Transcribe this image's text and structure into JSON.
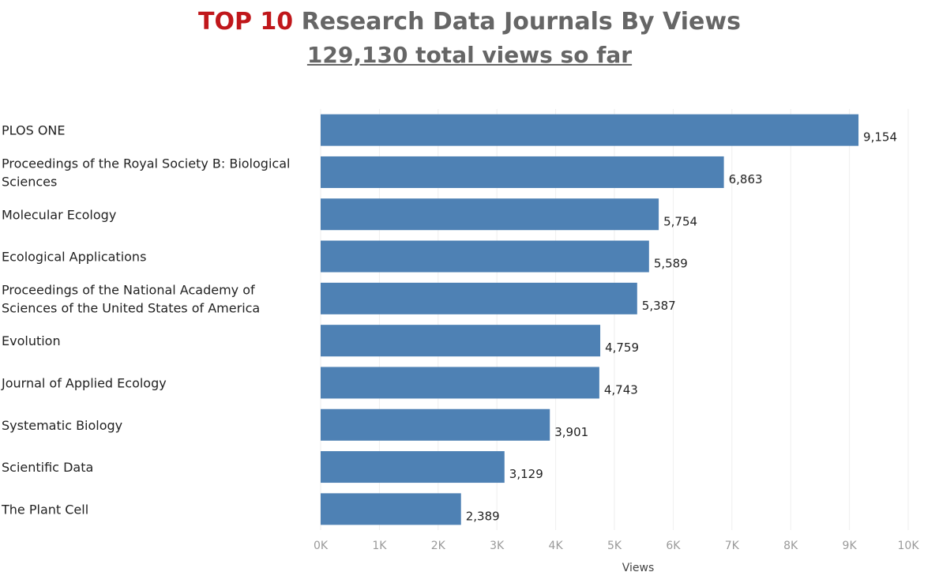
{
  "header": {
    "title_accent": "TOP 10",
    "title_rest": " Research Data Journals By Views",
    "subtitle": "129,130 total views so far"
  },
  "chart_data": {
    "type": "bar",
    "orientation": "horizontal",
    "title": "TOP 10 Research Data Journals By Views",
    "subtitle": "129,130 total views so far",
    "categories": [
      [
        "PLOS ONE"
      ],
      [
        "Proceedings of the Royal Society B: Biological",
        "Sciences"
      ],
      [
        "Molecular Ecology"
      ],
      [
        "Ecological Applications"
      ],
      [
        "Proceedings of the National Academy of",
        "Sciences of the United States of America"
      ],
      [
        "Evolution"
      ],
      [
        "Journal of Applied Ecology"
      ],
      [
        "Systematic Biology"
      ],
      [
        "Scientific Data"
      ],
      [
        "The Plant Cell"
      ]
    ],
    "values": [
      9154,
      6863,
      5754,
      5589,
      5387,
      4759,
      4743,
      3901,
      3129,
      2389
    ],
    "value_labels": [
      "9,154",
      "6,863",
      "5,754",
      "5,589",
      "5,387",
      "4,759",
      "4,743",
      "3,901",
      "3,129",
      "2,389"
    ],
    "xlabel": "Views",
    "ylabel": "",
    "xlim": [
      0,
      10000
    ],
    "xticks": [
      0,
      1000,
      2000,
      3000,
      4000,
      5000,
      6000,
      7000,
      8000,
      9000,
      10000
    ],
    "xtick_labels": [
      "0K",
      "1K",
      "2K",
      "3K",
      "4K",
      "5K",
      "6K",
      "7K",
      "8K",
      "9K",
      "10K"
    ],
    "grid": "vertical",
    "bar_color": "#4e81b4"
  }
}
